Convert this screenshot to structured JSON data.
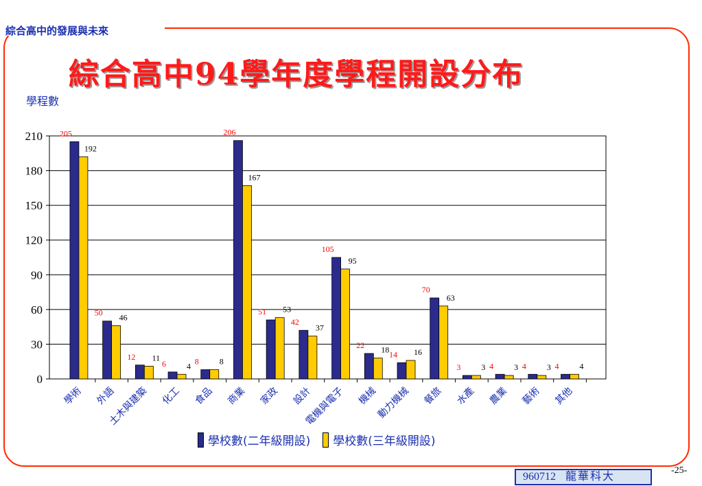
{
  "header": {
    "top_title": "綜合高中的發展與未來"
  },
  "slide": {
    "title": "綜合高中94學年度學程開設分布",
    "y_unit": "學程數"
  },
  "colors": {
    "series1": "#2b2b8c",
    "series2": "#ffcc00",
    "label1": "#ff0000",
    "label2": "#000000",
    "axis_text": "#1a2fb0",
    "frame": "#ff2a00"
  },
  "chart_data": {
    "type": "bar",
    "categories": [
      "學術",
      "外語",
      "土木與建築",
      "化工",
      "食品",
      "商業",
      "家政",
      "設計",
      "電機與電子",
      "機械",
      "動力機械",
      "餐旅",
      "水產",
      "農業",
      "藝術",
      "其他"
    ],
    "series": [
      {
        "name": "學校數(二年級開設)",
        "values": [
          205,
          50,
          12,
          6,
          8,
          206,
          51,
          42,
          105,
          22,
          14,
          70,
          3,
          4,
          4,
          4
        ]
      },
      {
        "name": "學校數(三年級開設)",
        "values": [
          192,
          46,
          11,
          4,
          8,
          167,
          53,
          37,
          95,
          18,
          16,
          63,
          3,
          3,
          3,
          4
        ]
      }
    ],
    "ylabel": "學程數",
    "ylim": [
      0,
      210
    ],
    "yticks": [
      0,
      30,
      60,
      90,
      120,
      150,
      180,
      210
    ],
    "grid": true,
    "legend": "bottom"
  },
  "legend": {
    "item1": "學校數(二年級開設)",
    "item2": "學校數(三年級開設)"
  },
  "footer": {
    "date": "960712",
    "org": "龍華科大",
    "page": "-25-"
  }
}
